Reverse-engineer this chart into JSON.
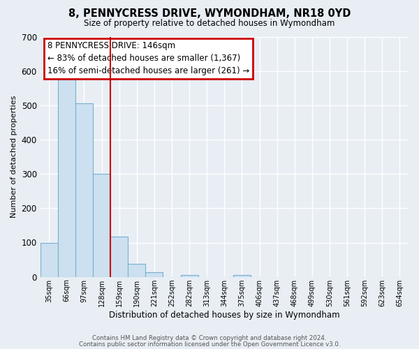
{
  "title": "8, PENNYCRESS DRIVE, WYMONDHAM, NR18 0YD",
  "subtitle": "Size of property relative to detached houses in Wymondham",
  "xlabel": "Distribution of detached houses by size in Wymondham",
  "ylabel": "Number of detached properties",
  "footer_line1": "Contains HM Land Registry data © Crown copyright and database right 2024.",
  "footer_line2": "Contains public sector information licensed under the Open Government Licence v3.0.",
  "bin_labels": [
    "35sqm",
    "66sqm",
    "97sqm",
    "128sqm",
    "159sqm",
    "190sqm",
    "221sqm",
    "252sqm",
    "282sqm",
    "313sqm",
    "344sqm",
    "375sqm",
    "406sqm",
    "437sqm",
    "468sqm",
    "499sqm",
    "530sqm",
    "561sqm",
    "592sqm",
    "623sqm",
    "654sqm"
  ],
  "bar_values": [
    100,
    575,
    505,
    300,
    118,
    37,
    13,
    0,
    5,
    0,
    0,
    5,
    0,
    0,
    0,
    0,
    0,
    0,
    0,
    0,
    0
  ],
  "bar_color": "#cce0f0",
  "bar_edge_color": "#7aafcf",
  "property_line_x": 3.0,
  "property_line_color": "#cc0000",
  "annotation_title": "8 PENNYCRESS DRIVE: 146sqm",
  "annotation_line1": "← 83% of detached houses are smaller (1,367)",
  "annotation_line2": "16% of semi-detached houses are larger (261) →",
  "annotation_box_color": "#cc0000",
  "ylim": [
    0,
    700
  ],
  "yticks": [
    0,
    100,
    200,
    300,
    400,
    500,
    600,
    700
  ],
  "background_color": "#e8eef4",
  "plot_background": "#e8eef4"
}
